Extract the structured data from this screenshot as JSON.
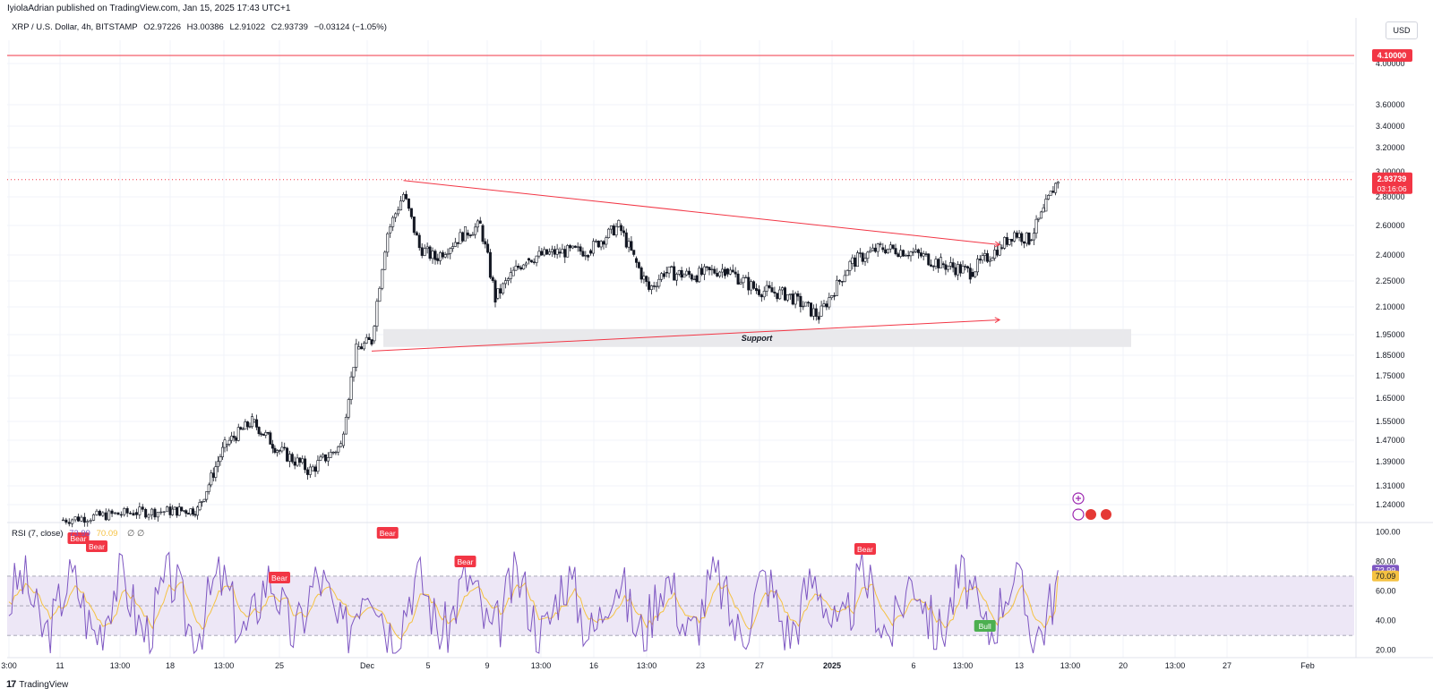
{
  "header": {
    "published": "IyiolaAdrian published on TradingView.com, Jan 15, 2025 17:43 UTC+1",
    "symbol": "XRP / U.S. Dollar, 4h, BITSTAMP",
    "open": "O2.97226",
    "high": "H3.00386",
    "low": "L2.91022",
    "close": "C2.93739",
    "change": "−0.03124 (−1.05%)"
  },
  "currency_button": "USD",
  "footer": {
    "brand": "TradingView",
    "logo": "17"
  },
  "rsi_legend": {
    "name": "RSI (7, close)",
    "value": "73.99",
    "sma": "70.09",
    "extra": "∅ ∅"
  },
  "colors": {
    "up": "#131722",
    "down": "#131722",
    "trendline": "#f23645",
    "rsi_line": "#7e57c2",
    "rsi_ma": "#f5c242",
    "rsi_band": "#ede7f6",
    "bear": "#f23645",
    "bull": "#4caf50",
    "support_zone": "#e9e9ec",
    "price_label_bg": "#f23645"
  },
  "chart_data": [
    {
      "type": "candlestick",
      "title": "XRP / U.S. Dollar, 4h, BITSTAMP",
      "y_scale": "log",
      "ylim": [
        1.2,
        4.3
      ],
      "y_ticks": [
        "4.00000",
        "3.60000",
        "3.40000",
        "3.20000",
        "3.00000",
        "2.80000",
        "2.60000",
        "2.40000",
        "2.25000",
        "2.10000",
        "1.95000",
        "1.85000",
        "1.75000",
        "1.65000",
        "1.55000",
        "1.47000",
        "1.39000",
        "1.31000",
        "1.24000"
      ],
      "x_ticks": [
        "3:00",
        "11",
        "13:00",
        "18",
        "13:00",
        "25",
        "Dec",
        "5",
        "9",
        "13:00",
        "16",
        "13:00",
        "23",
        "27",
        "2025",
        "6",
        "13:00",
        "13",
        "13:00",
        "20",
        "13:00",
        "27",
        "Feb"
      ],
      "series_approx_close": [
        {
          "date": "Nov 11",
          "close": 1.18
        },
        {
          "date": "Nov 15",
          "close": 1.21
        },
        {
          "date": "Nov 19",
          "close": 1.22
        },
        {
          "date": "Nov 21",
          "close": 1.45
        },
        {
          "date": "Nov 23",
          "close": 1.55
        },
        {
          "date": "Nov 25",
          "close": 1.43
        },
        {
          "date": "Nov 27",
          "close": 1.36
        },
        {
          "date": "Nov 29",
          "close": 1.45
        },
        {
          "date": "Nov 30",
          "close": 1.88
        },
        {
          "date": "Dec 1",
          "close": 1.92
        },
        {
          "date": "Dec 2",
          "close": 2.55
        },
        {
          "date": "Dec 3",
          "close": 2.82
        },
        {
          "date": "Dec 4",
          "close": 2.45
        },
        {
          "date": "Dec 5",
          "close": 2.38
        },
        {
          "date": "Dec 7",
          "close": 2.55
        },
        {
          "date": "Dec 8",
          "close": 2.6
        },
        {
          "date": "Dec 9",
          "close": 2.15
        },
        {
          "date": "Dec 10",
          "close": 2.28
        },
        {
          "date": "Dec 11",
          "close": 2.38
        },
        {
          "date": "Dec 13",
          "close": 2.42
        },
        {
          "date": "Dec 15",
          "close": 2.43
        },
        {
          "date": "Dec 17",
          "close": 2.6
        },
        {
          "date": "Dec 18",
          "close": 2.38
        },
        {
          "date": "Dec 19",
          "close": 2.2
        },
        {
          "date": "Dec 20",
          "close": 2.3
        },
        {
          "date": "Dec 22",
          "close": 2.28
        },
        {
          "date": "Dec 24",
          "close": 2.32
        },
        {
          "date": "Dec 26",
          "close": 2.2
        },
        {
          "date": "Dec 28",
          "close": 2.17
        },
        {
          "date": "Dec 30",
          "close": 2.05
        },
        {
          "date": "Jan 1",
          "close": 2.35
        },
        {
          "date": "Jan 3",
          "close": 2.45
        },
        {
          "date": "Jan 5",
          "close": 2.42
        },
        {
          "date": "Jan 7",
          "close": 2.35
        },
        {
          "date": "Jan 9",
          "close": 2.3
        },
        {
          "date": "Jan 11",
          "close": 2.45
        },
        {
          "date": "Jan 12",
          "close": 2.55
        },
        {
          "date": "Jan 13",
          "close": 2.5
        },
        {
          "date": "Jan 14",
          "close": 2.7
        },
        {
          "date": "Jan 15",
          "close": 2.94
        }
      ],
      "current_price": "2.93739",
      "countdown": "03:16:06",
      "horizontal_line": "4.10000",
      "annotations": {
        "support_label": "Support",
        "support_zone": [
          1.89,
          1.98
        ],
        "upper_trendline": {
          "from": [
            "Dec 3",
            2.93
          ],
          "to": [
            "Jan 11",
            2.47
          ]
        },
        "lower_trendline": {
          "from": [
            "Dec 1",
            1.87
          ],
          "to": [
            "Jan 11",
            2.03
          ]
        }
      }
    },
    {
      "type": "line",
      "title": "RSI (7, close)",
      "ylim": [
        15,
        105
      ],
      "y_ticks": [
        "100.00",
        "80.00",
        "60.00",
        "40.00",
        "20.00"
      ],
      "band": [
        30,
        70
      ],
      "midline": 50,
      "current": "73.99",
      "ma_current": "70.09",
      "divergence_labels": [
        {
          "text": "Bear",
          "date": "Nov 12"
        },
        {
          "text": "Bear",
          "date": "Nov 13"
        },
        {
          "text": "Bear",
          "date": "Nov 25"
        },
        {
          "text": "Bear",
          "date": "Dec 2"
        },
        {
          "text": "Bear",
          "date": "Dec 7"
        },
        {
          "text": "Bear",
          "date": "Jan 2"
        },
        {
          "text": "Bull",
          "date": "Jan 10"
        }
      ]
    }
  ]
}
